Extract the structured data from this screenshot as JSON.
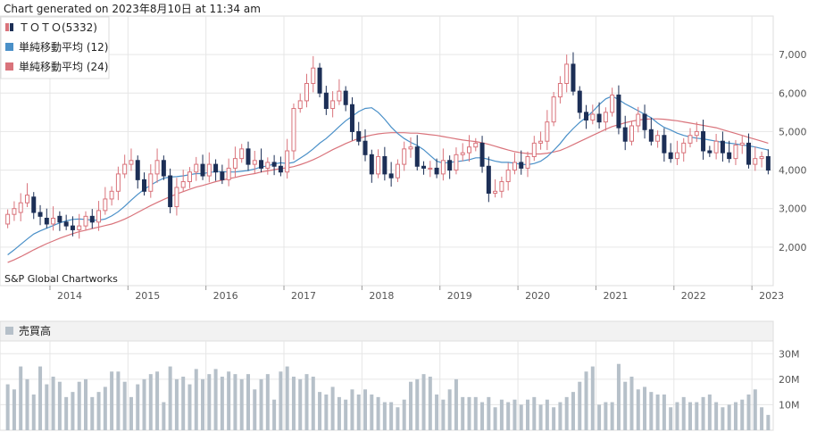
{
  "header": {
    "generated_text": "Chart generated on 2023年8月10日 at 11:34 am"
  },
  "credit": "S&P Global Chartworks",
  "colors": {
    "up": "#d9737b",
    "down": "#1c2f56",
    "ma12": "#4a90c8",
    "ma24": "#d9737b",
    "volume": "#b6c0c9",
    "grid": "#e6e6e6",
    "axis": "#999999"
  },
  "chart_data": [
    {
      "type": "candlestick",
      "legend": [
        "ＴＯＴＯ(5332)",
        "単純移動平均 (12)",
        "単純移動平均 (24)"
      ],
      "legend_position": "top-left",
      "grid": true,
      "x_ticks": [
        "2014",
        "2015",
        "2016",
        "2017",
        "2018",
        "2019",
        "2020",
        "2021",
        "2022",
        "2023"
      ],
      "y_ticks": [
        "2,000",
        "3,000",
        "4,000",
        "5,000",
        "6,000",
        "7,000"
      ],
      "ylim": [
        1000,
        8000
      ],
      "period_start": "2013-06",
      "candles": [
        [
          2600,
          2850
        ],
        [
          2850,
          3000
        ],
        [
          2900,
          3150
        ],
        [
          3150,
          3350
        ],
        [
          3300,
          2900
        ],
        [
          2900,
          2800
        ],
        [
          2750,
          2600
        ],
        [
          2600,
          2750
        ],
        [
          2800,
          2650
        ],
        [
          2650,
          2550
        ],
        [
          2550,
          2450
        ],
        [
          2450,
          2550
        ],
        [
          2550,
          2800
        ],
        [
          2800,
          2650
        ],
        [
          2650,
          2950
        ],
        [
          2950,
          3250
        ],
        [
          3250,
          3450
        ],
        [
          3450,
          3900
        ],
        [
          3900,
          4150
        ],
        [
          4150,
          4250
        ],
        [
          4250,
          3750
        ],
        [
          3750,
          3450
        ],
        [
          3450,
          3900
        ],
        [
          3900,
          4250
        ],
        [
          4250,
          3850
        ],
        [
          3850,
          3050
        ],
        [
          3050,
          3550
        ],
        [
          3550,
          3700
        ],
        [
          3700,
          3950
        ],
        [
          3950,
          4150
        ],
        [
          4150,
          3850
        ],
        [
          3850,
          4150
        ],
        [
          4150,
          3950
        ],
        [
          3950,
          3750
        ],
        [
          3750,
          4050
        ],
        [
          4050,
          4300
        ],
        [
          4300,
          4550
        ],
        [
          4550,
          4150
        ],
        [
          4150,
          4250
        ],
        [
          4250,
          4050
        ],
        [
          4050,
          4200
        ],
        [
          4200,
          4100
        ],
        [
          4100,
          3950
        ],
        [
          3950,
          4500
        ],
        [
          4500,
          5600
        ],
        [
          5600,
          5800
        ],
        [
          5800,
          6250
        ],
        [
          6250,
          6650
        ],
        [
          6650,
          6000
        ],
        [
          6000,
          5600
        ],
        [
          5600,
          5800
        ],
        [
          5800,
          6050
        ],
        [
          6050,
          5700
        ],
        [
          5700,
          5000
        ],
        [
          5000,
          4750
        ],
        [
          4750,
          4400
        ],
        [
          4400,
          3900
        ],
        [
          3900,
          4350
        ],
        [
          4350,
          3900
        ],
        [
          3900,
          3800
        ],
        [
          3800,
          4150
        ],
        [
          4150,
          4550
        ],
        [
          4550,
          4600
        ],
        [
          4600,
          4100
        ],
        [
          4100,
          4050
        ],
        [
          4050,
          4050
        ],
        [
          4050,
          3900
        ],
        [
          3900,
          4250
        ],
        [
          4250,
          4000
        ],
        [
          4000,
          4400
        ],
        [
          4400,
          4450
        ],
        [
          4450,
          4600
        ],
        [
          4600,
          4700
        ],
        [
          4700,
          4100
        ],
        [
          4100,
          3400
        ],
        [
          3400,
          3450
        ],
        [
          3450,
          3700
        ],
        [
          3700,
          4000
        ],
        [
          4000,
          4200
        ],
        [
          4200,
          4050
        ],
        [
          4050,
          4350
        ],
        [
          4350,
          4700
        ],
        [
          4700,
          4750
        ],
        [
          4750,
          5250
        ],
        [
          5250,
          5900
        ],
        [
          5900,
          6250
        ],
        [
          6250,
          6750
        ],
        [
          6750,
          6050
        ],
        [
          6050,
          5500
        ],
        [
          5500,
          5300
        ],
        [
          5300,
          5450
        ],
        [
          5450,
          5250
        ],
        [
          5250,
          5500
        ],
        [
          5500,
          5950
        ],
        [
          5950,
          5100
        ],
        [
          5100,
          4750
        ],
        [
          4750,
          5150
        ],
        [
          5150,
          5450
        ],
        [
          5450,
          5050
        ],
        [
          5050,
          4750
        ],
        [
          4750,
          4900
        ],
        [
          4900,
          4450
        ],
        [
          4450,
          4300
        ],
        [
          4300,
          4450
        ],
        [
          4450,
          4700
        ],
        [
          4700,
          4900
        ],
        [
          4900,
          5000
        ],
        [
          5000,
          4500
        ],
        [
          4500,
          4450
        ],
        [
          4450,
          4750
        ],
        [
          4750,
          4450
        ],
        [
          4450,
          4300
        ],
        [
          4300,
          4650
        ],
        [
          4650,
          4700
        ],
        [
          4700,
          4150
        ],
        [
          4150,
          4300
        ],
        [
          4300,
          4350
        ],
        [
          4350,
          4000
        ]
      ],
      "sma_12": [
        1800,
        1930,
        2070,
        2210,
        2340,
        2420,
        2490,
        2560,
        2630,
        2680,
        2720,
        2730,
        2720,
        2700,
        2700,
        2730,
        2810,
        2920,
        3060,
        3220,
        3370,
        3500,
        3610,
        3710,
        3790,
        3820,
        3830,
        3850,
        3880,
        3910,
        3910,
        3940,
        3960,
        3960,
        3950,
        3950,
        3970,
        3990,
        4030,
        4080,
        4110,
        4160,
        4190,
        4170,
        4200,
        4310,
        4420,
        4550,
        4700,
        4820,
        4970,
        5130,
        5280,
        5400,
        5520,
        5600,
        5620,
        5500,
        5320,
        5120,
        4950,
        4820,
        4720,
        4640,
        4530,
        4380,
        4230,
        4180,
        4200,
        4220,
        4240,
        4270,
        4320,
        4320,
        4280,
        4230,
        4200,
        4200,
        4180,
        4150,
        4140,
        4170,
        4230,
        4350,
        4510,
        4690,
        4900,
        5080,
        5240,
        5370,
        5520,
        5700,
        5850,
        5920,
        5830,
        5720,
        5630,
        5540,
        5450,
        5360,
        5220,
        5110,
        5040,
        4960,
        4900,
        4860,
        4830,
        4810,
        4780,
        4750,
        4720,
        4700,
        4680,
        4650,
        4630,
        4600,
        4560,
        4520
      ],
      "sma_24": [
        1600,
        1670,
        1750,
        1840,
        1930,
        2010,
        2090,
        2160,
        2230,
        2290,
        2350,
        2400,
        2440,
        2480,
        2520,
        2560,
        2600,
        2660,
        2730,
        2810,
        2900,
        2990,
        3080,
        3160,
        3240,
        3310,
        3380,
        3440,
        3500,
        3560,
        3600,
        3650,
        3700,
        3740,
        3780,
        3810,
        3850,
        3880,
        3910,
        3950,
        3980,
        4010,
        4040,
        4060,
        4090,
        4140,
        4200,
        4270,
        4350,
        4440,
        4530,
        4610,
        4690,
        4760,
        4820,
        4870,
        4910,
        4940,
        4960,
        4970,
        4970,
        4970,
        4960,
        4960,
        4940,
        4920,
        4900,
        4870,
        4840,
        4810,
        4780,
        4760,
        4740,
        4710,
        4670,
        4620,
        4570,
        4520,
        4480,
        4450,
        4430,
        4420,
        4420,
        4440,
        4470,
        4510,
        4580,
        4660,
        4740,
        4820,
        4900,
        4980,
        5060,
        5130,
        5180,
        5230,
        5270,
        5300,
        5320,
        5330,
        5330,
        5320,
        5300,
        5280,
        5250,
        5220,
        5190,
        5160,
        5130,
        5100,
        5050,
        5000,
        4950,
        4900,
        4850,
        4800,
        4750,
        4700
      ]
    },
    {
      "type": "bar",
      "title": "売買高",
      "y_ticks": [
        "10M",
        "20M",
        "30M"
      ],
      "ylim": [
        0,
        35
      ],
      "values": [
        18,
        16,
        25,
        20,
        14,
        25,
        18,
        21,
        19,
        13,
        15,
        19,
        20,
        13,
        15,
        17,
        23,
        23,
        19,
        13,
        18,
        20,
        22,
        23,
        11,
        25,
        20,
        21,
        18,
        24,
        20,
        22,
        24,
        21,
        23,
        22,
        20,
        22,
        16,
        20,
        22,
        12,
        23,
        25,
        21,
        20,
        22,
        21,
        15,
        14,
        17,
        13,
        12,
        16,
        14,
        16,
        14,
        13,
        11,
        11,
        9,
        12,
        19,
        20,
        22,
        21,
        14,
        12,
        16,
        20,
        13,
        13,
        13,
        11,
        13,
        9,
        12,
        11,
        12,
        10,
        12,
        13,
        10,
        12,
        9,
        11,
        13,
        15,
        19,
        23,
        25,
        10,
        11,
        11,
        26,
        19,
        21,
        16,
        17,
        15,
        14,
        14,
        9,
        11,
        13,
        11,
        11,
        13,
        14,
        11,
        9,
        10,
        11,
        12,
        14,
        16,
        9,
        6
      ]
    }
  ]
}
